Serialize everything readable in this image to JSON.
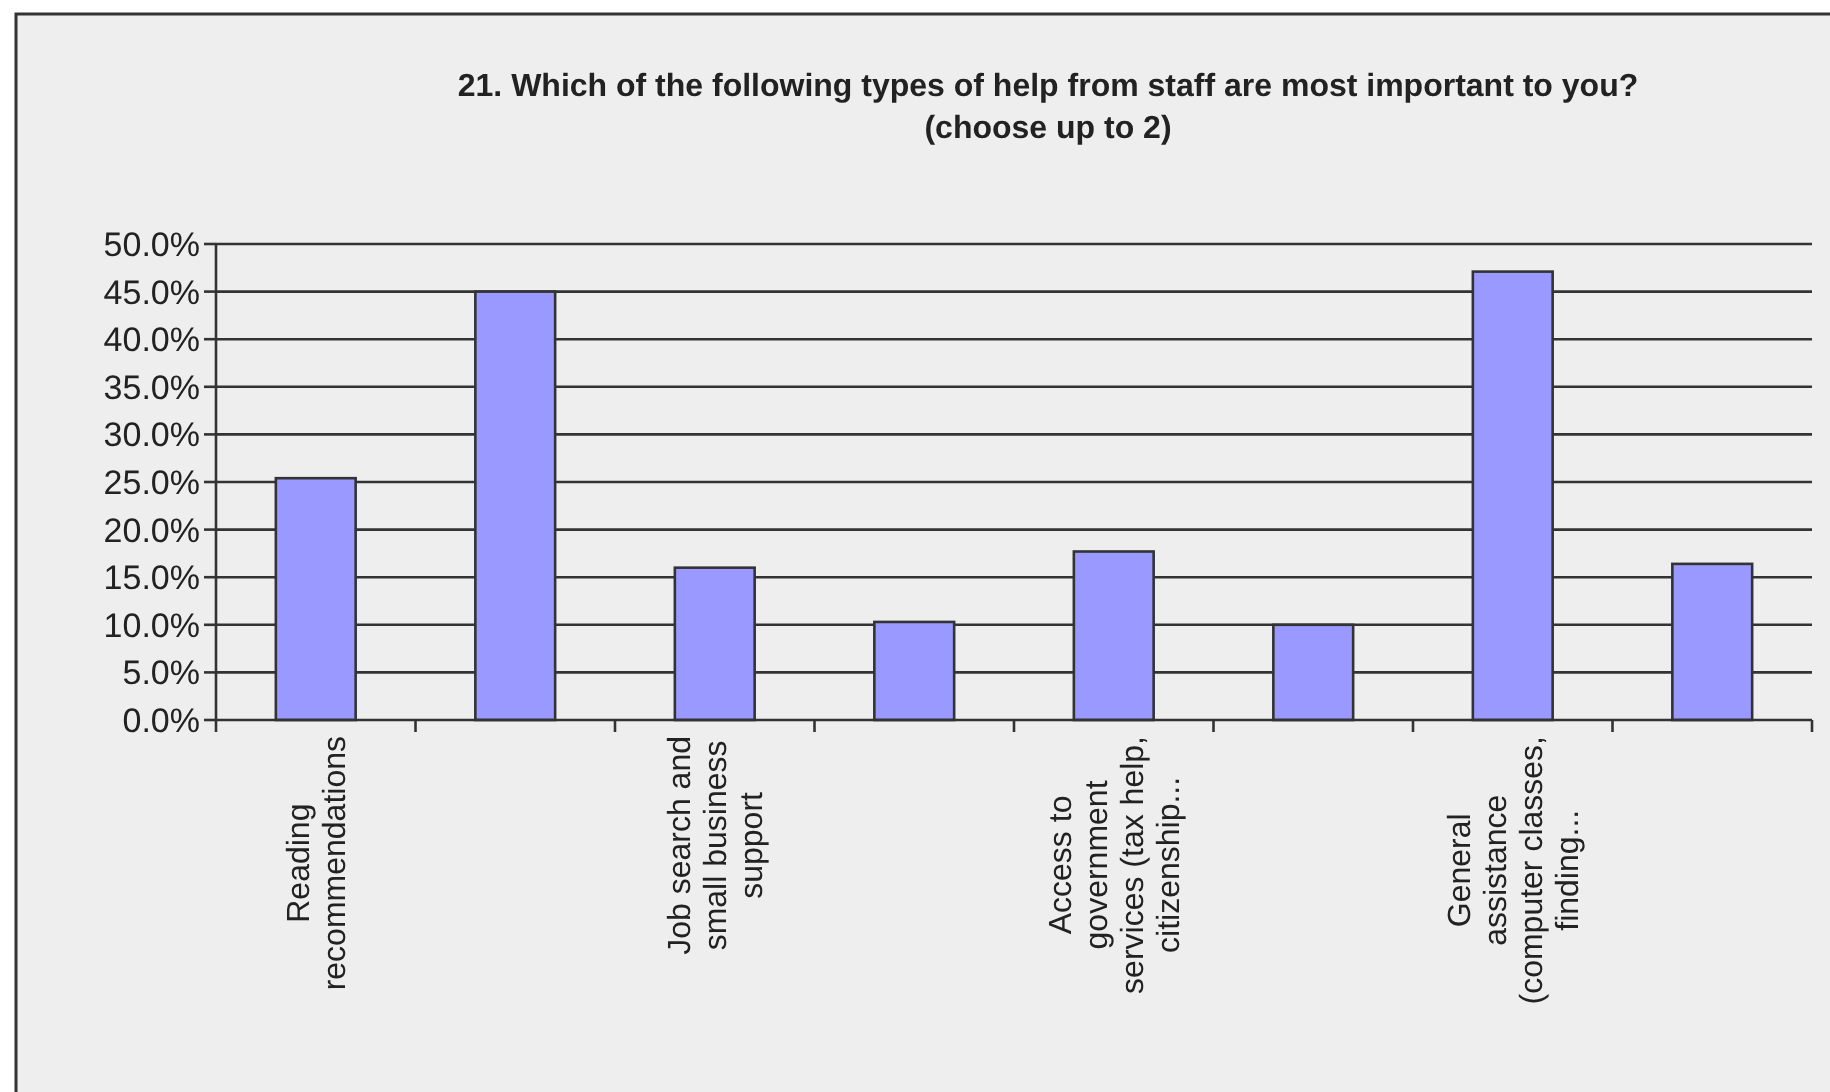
{
  "chart_data": {
    "type": "bar",
    "title": "21. Which of the following types of help from staff are most important to you? (choose up to 2)",
    "categories": [
      "Reading recommendations",
      null,
      "Job search and small business support",
      null,
      "Access to government services (tax help, citizenship...",
      null,
      "General assistance (computer classes, finding...",
      null
    ],
    "values": [
      25.4,
      45.0,
      16.0,
      10.3,
      17.7,
      10.0,
      47.1,
      16.4
    ],
    "color": "#9999ff",
    "ylim": [
      0,
      50
    ],
    "yticks": [
      {
        "value": 0,
        "label": "0.0%"
      },
      {
        "value": 5,
        "label": "5.0%"
      },
      {
        "value": 10,
        "label": "10.0%"
      },
      {
        "value": 15,
        "label": "15.0%"
      },
      {
        "value": 20,
        "label": "20.0%"
      },
      {
        "value": 25,
        "label": "25.0%"
      },
      {
        "value": 30,
        "label": "30.0%"
      },
      {
        "value": 35,
        "label": "35.0%"
      },
      {
        "value": 40,
        "label": "40.0%"
      },
      {
        "value": 45,
        "label": "45.0%"
      },
      {
        "value": 50,
        "label": "50.0%"
      }
    ],
    "grid": "y"
  }
}
